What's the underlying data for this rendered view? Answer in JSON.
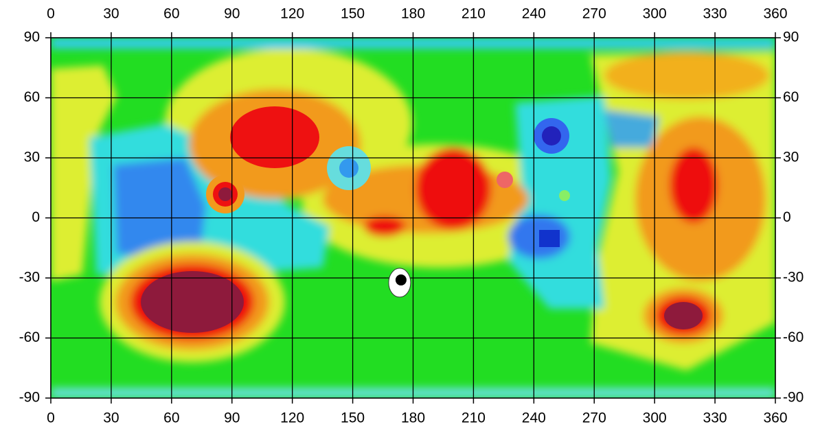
{
  "map": {
    "xlim": [
      0,
      360
    ],
    "ylim": [
      -90,
      90
    ],
    "xticks": [
      0,
      30,
      60,
      90,
      120,
      150,
      180,
      210,
      240,
      270,
      300,
      330,
      360
    ],
    "yticks": [
      90,
      60,
      30,
      0,
      -30,
      -60,
      -90
    ],
    "marker": {
      "lon": 174,
      "lat": -31
    }
  }
}
